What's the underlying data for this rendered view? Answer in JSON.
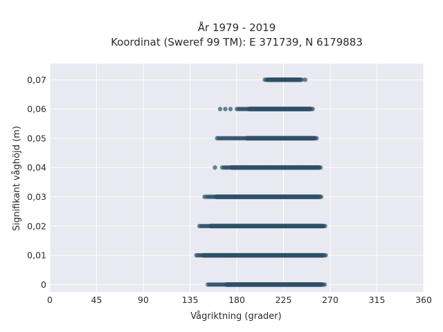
{
  "chart_data": {
    "type": "scatter",
    "title": "År 1979 - 2019",
    "subtitle": "Koordinat (Sweref 99 TM): E 371739, N 6179883",
    "xlabel": "Vågriktning (grader)",
    "ylabel": "Signifikant våghöjd (m)",
    "xlim": [
      0,
      360
    ],
    "ylim": [
      -0.0025,
      0.0755
    ],
    "xticks": [
      0,
      45,
      90,
      135,
      180,
      225,
      270,
      315,
      360
    ],
    "xtick_labels": [
      "0",
      "45",
      "90",
      "135",
      "180",
      "225",
      "270",
      "315",
      "360"
    ],
    "yticks": [
      0,
      0.01,
      0.02,
      0.03,
      0.04,
      0.05,
      0.06,
      0.07
    ],
    "ytick_labels": [
      "0",
      "0,01",
      "0,02",
      "0,03",
      "0,04",
      "0,05",
      "0,06",
      "0,07"
    ],
    "grid": true,
    "marker_color": "#2e5068",
    "plot_background": "#e8e9f1",
    "series": [
      {
        "bands": [
          {
            "y": 0.0,
            "x_min": 152,
            "x_max": 265,
            "dense_min": 170,
            "dense_max": 262,
            "outliers": []
          },
          {
            "y": 0.01,
            "x_min": 141,
            "x_max": 266,
            "dense_min": 148,
            "dense_max": 263,
            "outliers": []
          },
          {
            "y": 0.02,
            "x_min": 144,
            "x_max": 266,
            "dense_min": 155,
            "dense_max": 263,
            "outliers": []
          },
          {
            "y": 0.03,
            "x_min": 151,
            "x_max": 262,
            "dense_min": 160,
            "dense_max": 260,
            "outliers": [
              149
            ]
          },
          {
            "y": 0.04,
            "x_min": 166,
            "x_max": 261,
            "dense_min": 175,
            "dense_max": 259,
            "outliers": [
              159
            ]
          },
          {
            "y": 0.05,
            "x_min": 161,
            "x_max": 258,
            "dense_min": 190,
            "dense_max": 255,
            "outliers": []
          },
          {
            "y": 0.06,
            "x_min": 180,
            "x_max": 254,
            "dense_min": 192,
            "dense_max": 251,
            "outliers": [
              164,
              169,
              174
            ]
          },
          {
            "y": 0.07,
            "x_min": 207,
            "x_max": 243,
            "dense_min": 210,
            "dense_max": 241,
            "outliers": [
              246
            ]
          }
        ]
      }
    ]
  }
}
